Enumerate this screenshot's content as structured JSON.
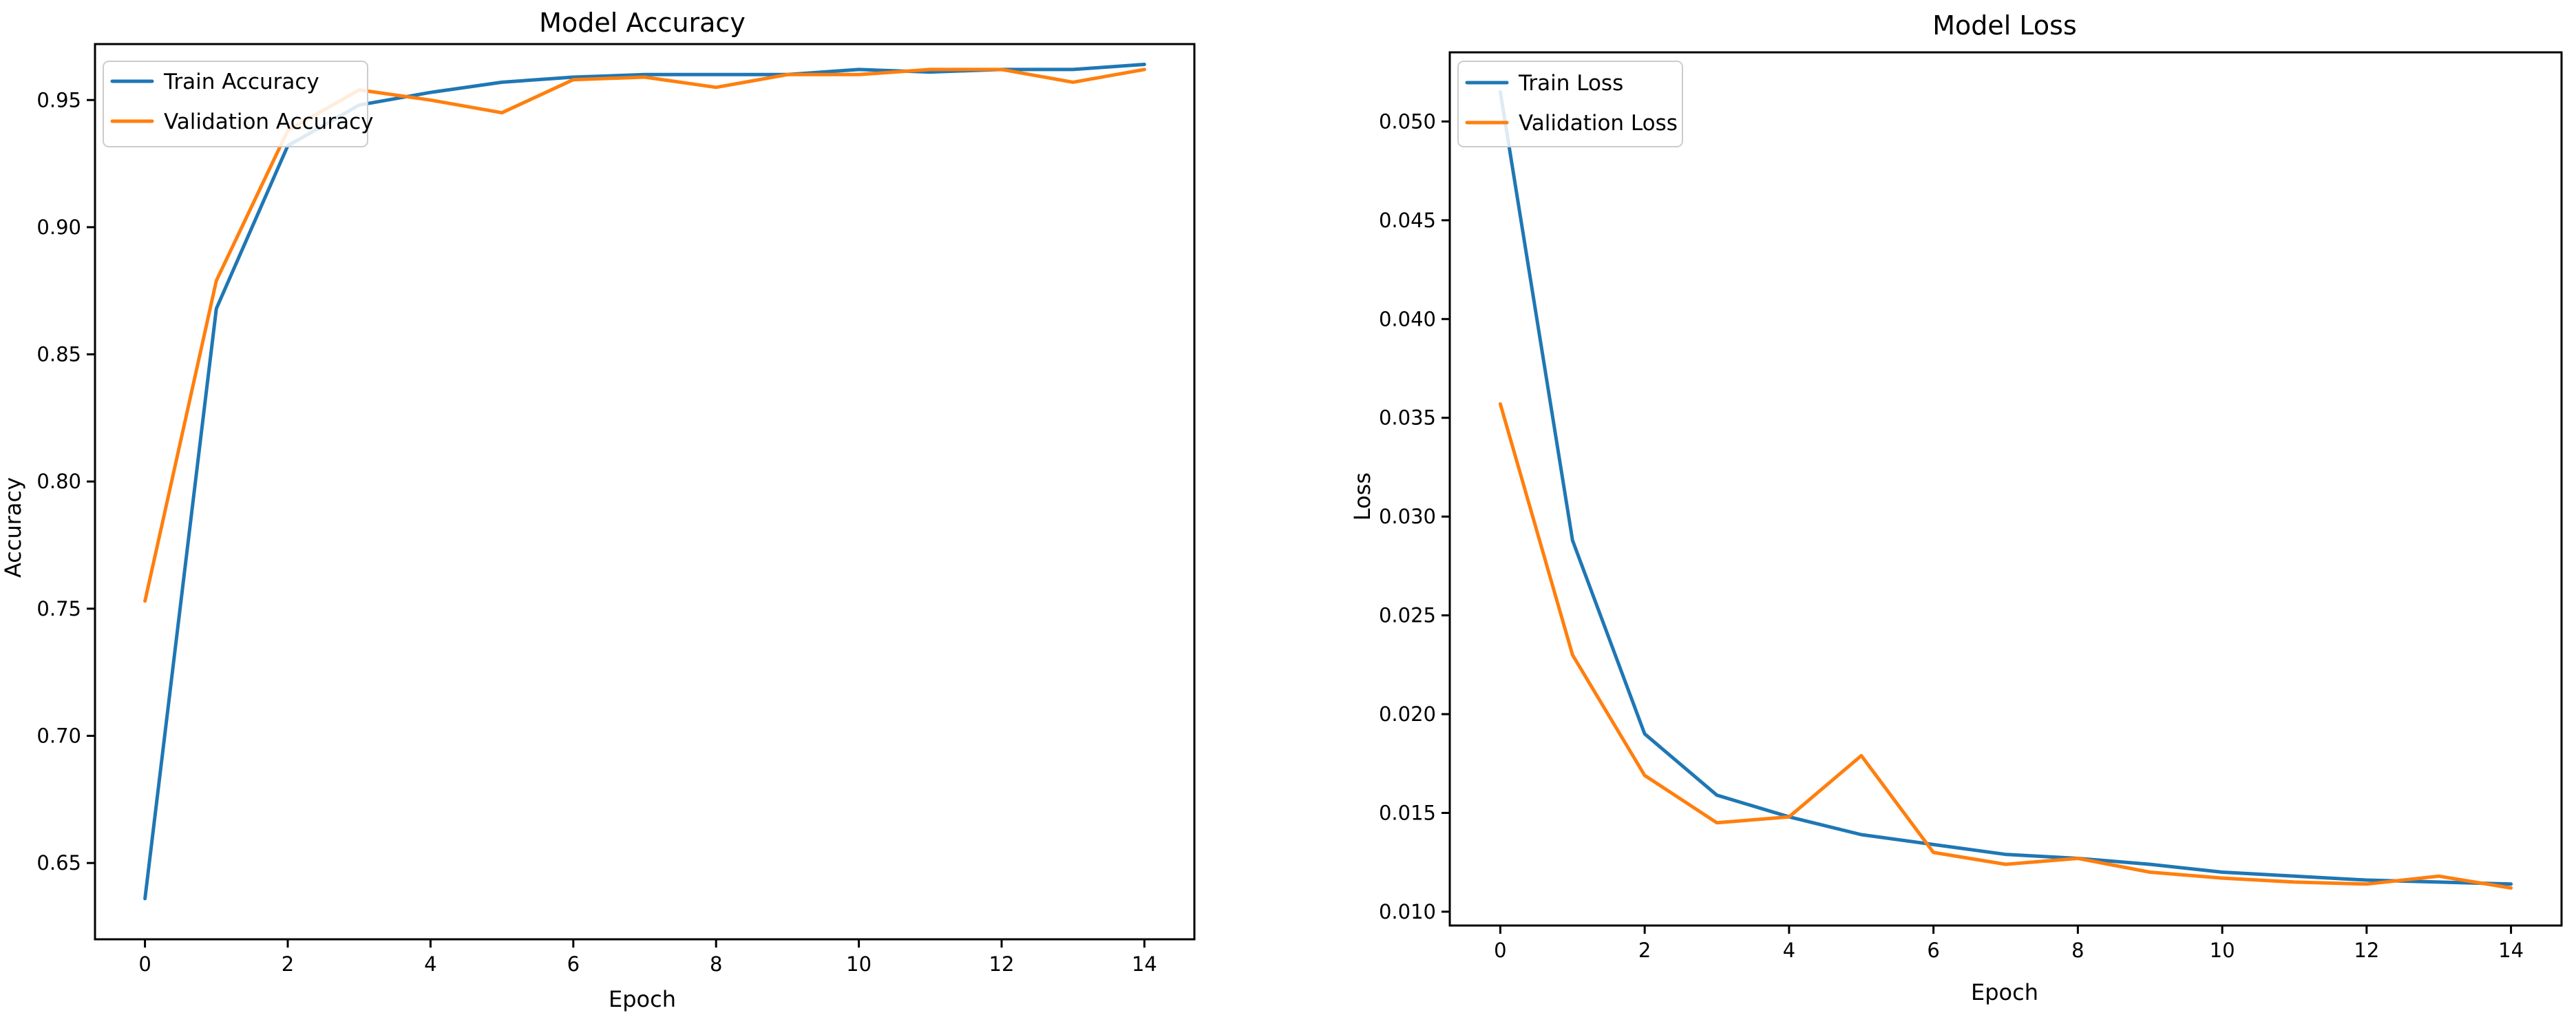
{
  "chart_data": [
    {
      "type": "line",
      "title": "Model Accuracy",
      "xlabel": "Epoch",
      "ylabel": "Accuracy",
      "xlim": [
        -0.7,
        14.7
      ],
      "ylim": [
        0.62,
        0.972
      ],
      "xticks": [
        0,
        2,
        4,
        6,
        8,
        10,
        12,
        14
      ],
      "yticks": [
        0.65,
        0.7,
        0.75,
        0.8,
        0.85,
        0.9,
        0.95
      ],
      "ytick_decimals": 2,
      "legend": "upper-left",
      "x": [
        0,
        1,
        2,
        3,
        4,
        5,
        6,
        7,
        8,
        9,
        10,
        11,
        12,
        13,
        14
      ],
      "series": [
        {
          "name": "Train Accuracy",
          "color": "#1f77b4",
          "values": [
            0.636,
            0.868,
            0.932,
            0.948,
            0.953,
            0.957,
            0.959,
            0.96,
            0.96,
            0.96,
            0.962,
            0.961,
            0.962,
            0.962,
            0.964
          ]
        },
        {
          "name": "Validation Accuracy",
          "color": "#ff7f0e",
          "values": [
            0.753,
            0.879,
            0.938,
            0.954,
            0.95,
            0.945,
            0.958,
            0.959,
            0.955,
            0.96,
            0.96,
            0.962,
            0.962,
            0.957,
            0.962
          ]
        }
      ]
    },
    {
      "type": "line",
      "title": "Model Loss",
      "xlabel": "Epoch",
      "ylabel": "Loss",
      "xlim": [
        -0.7,
        14.7
      ],
      "ylim": [
        0.0093,
        0.0535
      ],
      "xticks": [
        0,
        2,
        4,
        6,
        8,
        10,
        12,
        14
      ],
      "yticks": [
        0.01,
        0.015,
        0.02,
        0.025,
        0.03,
        0.035,
        0.04,
        0.045,
        0.05
      ],
      "ytick_decimals": 3,
      "legend": "upper-left",
      "x": [
        0,
        1,
        2,
        3,
        4,
        5,
        6,
        7,
        8,
        9,
        10,
        11,
        12,
        13,
        14
      ],
      "series": [
        {
          "name": "Train Loss",
          "color": "#1f77b4",
          "values": [
            0.0515,
            0.0288,
            0.019,
            0.0159,
            0.0148,
            0.0139,
            0.0134,
            0.0129,
            0.0127,
            0.0124,
            0.012,
            0.0118,
            0.0116,
            0.0115,
            0.0114
          ]
        },
        {
          "name": "Validation Loss",
          "color": "#ff7f0e",
          "values": [
            0.0357,
            0.023,
            0.0169,
            0.0145,
            0.0148,
            0.0179,
            0.013,
            0.0124,
            0.0127,
            0.012,
            0.0117,
            0.0115,
            0.0114,
            0.0118,
            0.0112
          ]
        }
      ]
    }
  ]
}
